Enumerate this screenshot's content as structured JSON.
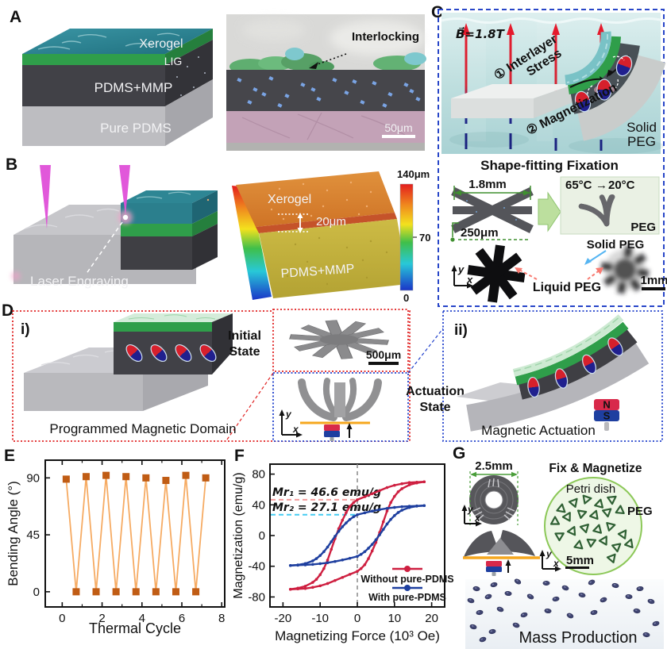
{
  "panels": {
    "A": {
      "label": "A",
      "schematic": {
        "layers": [
          "Xerogel",
          "LIG",
          "PDMS+MMP",
          "Pure PDMS"
        ]
      },
      "sem": {
        "annotation": "Interlocking",
        "scalebar": "50μm"
      }
    },
    "B": {
      "label": "B",
      "laser_label": "Laser Engraving",
      "heightmap": {
        "top_label": "Xerogel",
        "step_label": "20μm",
        "bottom_label": "PDMS+MMP",
        "colorbar": {
          "max": "140μm",
          "mid": "70",
          "min": "0"
        }
      }
    },
    "C": {
      "label": "C",
      "field_label": "B⃗=1.8T",
      "step1_line1": "① Interlayer",
      "step1_line2": "Stress",
      "step2": "② Magnetization",
      "solid_peg_line1": "Solid",
      "solid_peg_line2": "PEG",
      "fixation": {
        "title": "Shape-fitting Fixation",
        "width_dim": "1.8mm",
        "thickness_dim": "250μm",
        "temp_from": "65°C",
        "temp_arrow": "→",
        "temp_to": "20°C",
        "peg": "PEG",
        "solid_peg": "Solid PEG",
        "liquid_peg": "Liquid PEG",
        "scalebar": "1mm",
        "axis_x": "x",
        "axis_y": "y"
      }
    },
    "D": {
      "label": "D",
      "i_label": "i)",
      "ii_label": "ii)",
      "initial_state_line1": "Initial",
      "initial_state_line2": "State",
      "actuation_state_line1": "Actuation",
      "actuation_state_line2": "State",
      "programmed_label": "Programmed Magnetic Domain",
      "actuation_label": "Magnetic Actuation",
      "scalebar": "500μm",
      "magnet_n": "N",
      "magnet_s": "S",
      "axis_x": "x",
      "axis_y": "y"
    },
    "E": {
      "label": "E"
    },
    "F": {
      "label": "F"
    },
    "G": {
      "label": "G",
      "ring_dim": "2.5mm",
      "fix_magnetize": "Fix & Magnetize",
      "petri_dish": "Petri dish",
      "peg": "PEG",
      "scalebar": "5mm",
      "mass_production": "Mass Production",
      "axis_x": "x",
      "axis_y": "y"
    }
  },
  "chart_data": [
    {
      "panel": "E",
      "type": "line",
      "title": "",
      "xlabel": "Thermal Cycle",
      "ylabel": "Bending Angle (°)",
      "x": [
        0.2,
        0.7,
        1.2,
        1.7,
        2.2,
        2.7,
        3.2,
        3.7,
        4.2,
        4.7,
        5.2,
        5.7,
        6.2,
        6.7,
        7.2
      ],
      "y": [
        89,
        0,
        91,
        0,
        92,
        0,
        91,
        0,
        90,
        0,
        88,
        0,
        92,
        0,
        90
      ],
      "xlim": [
        -0.85,
        8.15
      ],
      "ylim": [
        -12,
        104
      ],
      "xticks": [
        0,
        2,
        4,
        6,
        8
      ],
      "xticks_minor": [
        1,
        3,
        5,
        7
      ],
      "yticks": [
        0,
        45,
        90
      ],
      "line_color": "#f6ab63",
      "marker_color": "#c05c14",
      "marker": "square",
      "grid": false,
      "frame": true
    },
    {
      "panel": "F",
      "type": "line",
      "title": "",
      "xlabel": "Magnetizing Force (10³ Oe)",
      "ylabel": "Magnetization (emu/g)",
      "xlim": [
        -23.5,
        23.5
      ],
      "ylim": [
        -93,
        93
      ],
      "xticks": [
        -20,
        -10,
        0,
        10,
        20
      ],
      "yticks": [
        -80,
        -40,
        0,
        40,
        80
      ],
      "grid": false,
      "frame": true,
      "vline_x": 0,
      "annotations": [
        {
          "text": "Mr₁ = 46.6 emu/g",
          "y": 46.6,
          "text_color": "#e56a6a",
          "line_color": "#f59c9c"
        },
        {
          "text": "Mr₂ = 27.1 emu/g",
          "y": 27.1,
          "text_color": "#29b5e8",
          "line_color": "#45ccf2"
        }
      ],
      "legend_position": "lower right",
      "series": [
        {
          "name": "Without pure-PDMS",
          "color": "#ce1f40",
          "symmetric_branch": true,
          "points": [
            [
              18,
              70
            ],
            [
              16,
              69.5
            ],
            [
              14,
              69
            ],
            [
              12,
              67.5
            ],
            [
              10,
              65.5
            ],
            [
              8,
              62.5
            ],
            [
              6,
              58.5
            ],
            [
              4,
              54.5
            ],
            [
              2,
              50.5
            ],
            [
              0,
              46.6
            ],
            [
              -1,
              43
            ],
            [
              -2,
              38
            ],
            [
              -3,
              30
            ],
            [
              -4,
              20
            ],
            [
              -5,
              9
            ],
            [
              -6,
              -4
            ],
            [
              -7,
              -18
            ],
            [
              -8,
              -32
            ],
            [
              -9,
              -43
            ],
            [
              -10,
              -51
            ],
            [
              -11,
              -57
            ],
            [
              -12,
              -61
            ],
            [
              -14,
              -66
            ],
            [
              -16,
              -68.5
            ],
            [
              -18,
              -70
            ]
          ]
        },
        {
          "name": "With pure-PDMS",
          "color": "#1e3f9f",
          "symmetric_branch": true,
          "points": [
            [
              18,
              39
            ],
            [
              16,
              38.6
            ],
            [
              14,
              38.2
            ],
            [
              12,
              37.6
            ],
            [
              10,
              36.6
            ],
            [
              8,
              35.4
            ],
            [
              6,
              33.8
            ],
            [
              4,
              31.8
            ],
            [
              2,
              29.6
            ],
            [
              0,
              27.1
            ],
            [
              -1,
              24.5
            ],
            [
              -2,
              21
            ],
            [
              -3,
              16.5
            ],
            [
              -4,
              11.5
            ],
            [
              -5,
              5.5
            ],
            [
              -6,
              -1
            ],
            [
              -7,
              -8
            ],
            [
              -8,
              -15
            ],
            [
              -9,
              -21
            ],
            [
              -10,
              -26
            ],
            [
              -11,
              -30
            ],
            [
              -12,
              -33
            ],
            [
              -14,
              -36.5
            ],
            [
              -16,
              -38.3
            ],
            [
              -18,
              -39
            ]
          ]
        }
      ]
    }
  ],
  "colors": {
    "xerogel_teal": "#2e8291",
    "lig_green": "#2f9e4a",
    "pdms_mmp_dark": "#414147",
    "pure_pdms_gray": "#bdbdc1",
    "laser_magenta": "#df4fd8",
    "field_red": "#e51a2c",
    "field_blue": "#1a2280",
    "c_border_blue": "#2846c8",
    "d_border_red": "#e02020",
    "d_border_blue": "#2040cc",
    "anno_green": "#3f8f2f",
    "solid_peg_blue": "#56b5f2",
    "liquid_peg_salmon": "#f87b72",
    "bend_line": "#f6ab63",
    "bend_marker": "#c05c14",
    "loop_red": "#ce1f40",
    "loop_blue": "#1e3f9f",
    "petri_green": "#8cc858",
    "orange_stage": "#f5a71e"
  }
}
